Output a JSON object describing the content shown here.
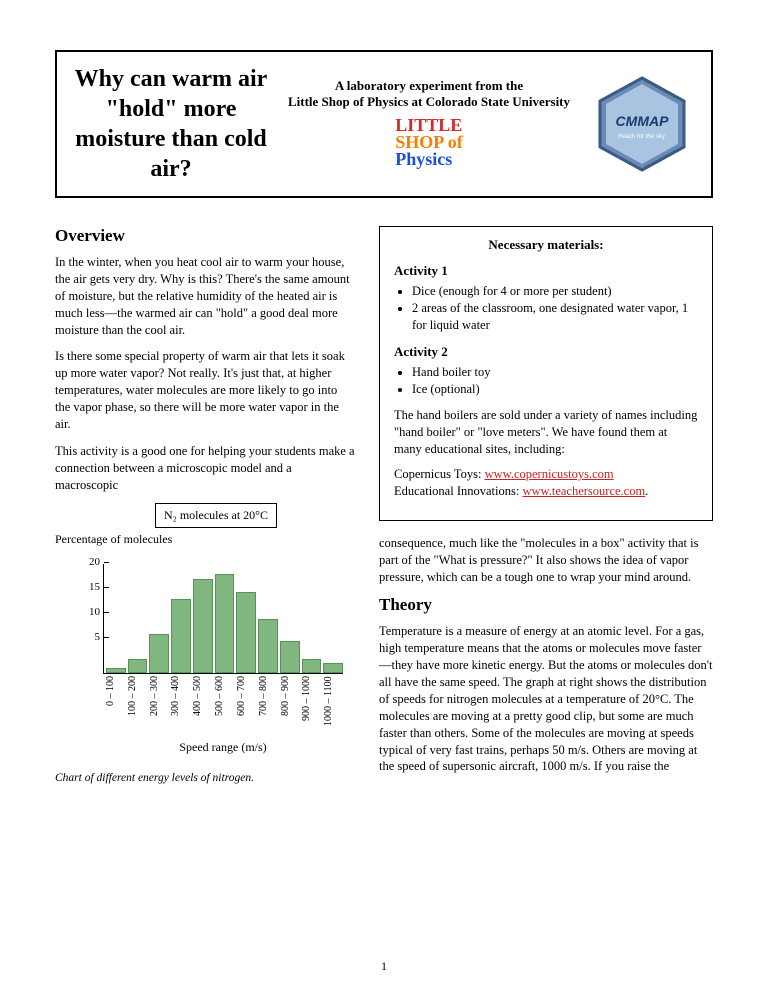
{
  "header": {
    "title": "Why can warm air \"hold\" more moisture than cold air?",
    "subtitle": "A laboratory experiment from the\nLittle Shop of Physics at Colorado State University",
    "logo_lines": [
      "LITTLE",
      "SHOP of",
      "Physics"
    ],
    "badge": {
      "label": "CMMAP",
      "tagline": "Reach for the sky."
    }
  },
  "overview": {
    "heading": "Overview",
    "p1": "In the winter, when you heat cool air to warm your house, the air gets very dry. Why is this? There's the same amount of moisture, but the relative humidity of the heated air is much less—the warmed air can \"hold\" a good deal more moisture than the cool air.",
    "p2": "Is there some special property of warm air that lets it soak up more water vapor? Not really. It's just that, at higher temperatures, water molecules are more likely to go into the vapor phase, so there will be more water vapor in the air.",
    "p3": "This activity is a good one for helping your students make a connection between a microscopic model and a macroscopic"
  },
  "materials": {
    "title": "Necessary materials:",
    "a1_heading": "Activity 1",
    "a1_items": [
      "Dice (enough for 4 or more per student)",
      "2 areas of the classroom, one designated water vapor, 1 for liquid water"
    ],
    "a2_heading": "Activity 2",
    "a2_items": [
      "Hand boiler toy",
      "Ice (optional)"
    ],
    "note": "The hand boilers are sold under a variety of names including \"hand boiler\" or \"love meters\". We have found them at many educational sites, including:",
    "link1_label": "Copernicus Toys: ",
    "link1_url": "www.copernicustoys.com",
    "link2_label": "Educational Innovations: ",
    "link2_url": "www.teachersource.com"
  },
  "right_para": "consequence, much like the \"molecules in a box\" activity that is part of the \"What is pressure?\" It also shows the idea of vapor pressure, which can be a tough one to wrap your mind around.",
  "theory": {
    "heading": "Theory",
    "p1": "Temperature is a measure of energy at an atomic level. For a gas, high temperature means that the atoms or molecules move faster—they have more kinetic energy. But the atoms or molecules don't all have the same speed. The graph at right shows the distribution of speeds for nitrogen molecules at a temperature of 20°C. The molecules are moving at a pretty good clip, but some are much faster than others. Some of the molecules are moving at speeds typical of very fast trains, perhaps 50 m/s. Others are moving at the speed of supersonic aircraft, 1000 m/s. If you raise the"
  },
  "chart": {
    "legend": "N₂ molecules at 20°C",
    "y_label": "Percentage of molecules",
    "x_label": "Speed range (m/s)",
    "caption": "Chart of different energy levels of nitrogen.",
    "y_ticks": [
      5,
      10,
      15,
      20
    ],
    "y_max": 22,
    "categories": [
      "0 – 100",
      "100 – 200",
      "200 – 300",
      "300 – 400",
      "400 – 500",
      "500 – 600",
      "600 – 700",
      "700 – 800",
      "800 – 900",
      "900 – 1000",
      "1000 – 1100"
    ],
    "values": [
      1,
      3,
      8,
      15,
      19,
      20,
      16.5,
      11,
      6.5,
      3,
      2
    ],
    "bar_color": "#7fb77e",
    "bar_border": "#5a9159"
  },
  "page_number": "1"
}
